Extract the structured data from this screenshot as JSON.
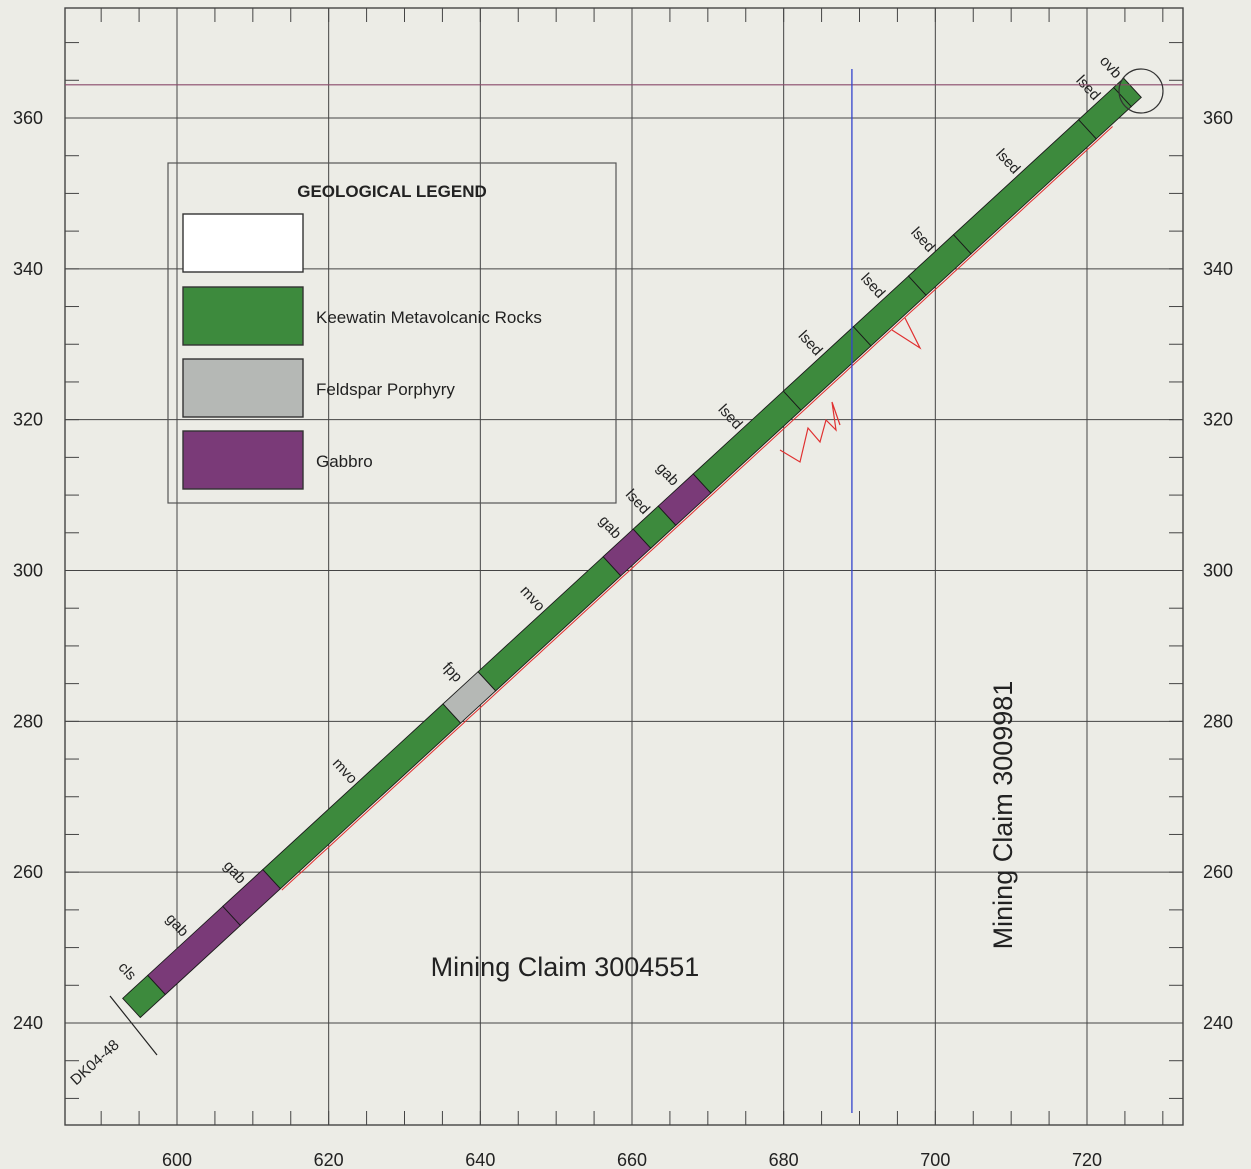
{
  "x_axis": {
    "ticks": [
      600,
      620,
      640,
      660,
      680,
      700,
      720
    ]
  },
  "y_axis": {
    "ticks": [
      240,
      260,
      280,
      300,
      320,
      340,
      360
    ]
  },
  "legend": {
    "title": "GEOLOGICAL LEGEND",
    "items": [
      {
        "label": "",
        "color": "#ffffff"
      },
      {
        "label": "Keewatin Metavolcanic Rocks",
        "color": "#3d8a3d"
      },
      {
        "label": "Feldspar Porphyry",
        "color": "#b5b8b5"
      },
      {
        "label": "Gabbro",
        "color": "#7a3a78"
      }
    ]
  },
  "colors": {
    "mvo": "#3d8a3d",
    "gab": "#7a3a78",
    "fpp": "#b5b8b5",
    "grid": "#444444",
    "boundary_line": "#3344cc",
    "baseline": "#8a4a6a",
    "trace": "#e03030"
  },
  "claims": [
    {
      "label": "Mining Claim 3004551"
    },
    {
      "label": "Mining Claim 3009981"
    }
  ],
  "hole": {
    "label": "DK04-48",
    "collar": [
      594,
      242
    ],
    "end": [
      726,
      364
    ],
    "segments": [
      {
        "code": "cls",
        "from": 0.0,
        "to": 0.025,
        "color_key": "mvo"
      },
      {
        "code": "gab",
        "from": 0.025,
        "to": 0.1,
        "color_key": "gab"
      },
      {
        "code": "gab",
        "from": 0.1,
        "to": 0.14,
        "color_key": "gab"
      },
      {
        "code": "mvo",
        "from": 0.14,
        "to": 0.32,
        "color_key": "mvo"
      },
      {
        "code": "fpp",
        "from": 0.32,
        "to": 0.355,
        "color_key": "fpp"
      },
      {
        "code": "mvo",
        "from": 0.355,
        "to": 0.48,
        "color_key": "mvo"
      },
      {
        "code": "gab",
        "from": 0.48,
        "to": 0.51,
        "color_key": "gab"
      },
      {
        "code": "lsed",
        "from": 0.51,
        "to": 0.535,
        "color_key": "mvo"
      },
      {
        "code": "gab",
        "from": 0.535,
        "to": 0.57,
        "color_key": "gab"
      },
      {
        "code": "lsed",
        "from": 0.57,
        "to": 0.66,
        "color_key": "mvo"
      },
      {
        "code": "lsed",
        "from": 0.66,
        "to": 0.73,
        "color_key": "mvo"
      },
      {
        "code": "lsed",
        "from": 0.73,
        "to": 0.785,
        "color_key": "mvo"
      },
      {
        "code": "lsed",
        "from": 0.785,
        "to": 0.83,
        "color_key": "mvo"
      },
      {
        "code": "lsed",
        "from": 0.83,
        "to": 0.955,
        "color_key": "mvo"
      },
      {
        "code": "lsed",
        "from": 0.955,
        "to": 0.99,
        "color_key": "mvo"
      },
      {
        "code": "ovb",
        "from": 0.99,
        "to": 1.0,
        "color_key": "mvo"
      }
    ]
  }
}
